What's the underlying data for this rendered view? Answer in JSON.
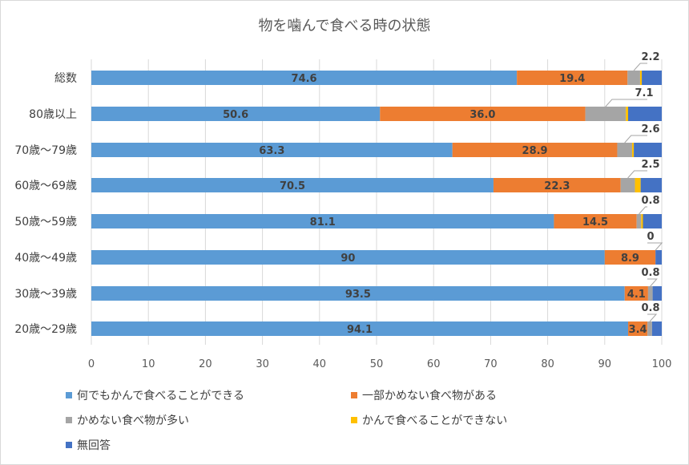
{
  "chart_data": {
    "type": "bar",
    "orientation": "horizontal",
    "stacked": true,
    "title": "物を噛んで食べる時の状態",
    "xlim": [
      0,
      100
    ],
    "xticks": [
      "0",
      "10",
      "20",
      "30",
      "40",
      "50",
      "60",
      "70",
      "80",
      "90",
      "100"
    ],
    "grid": "vertical",
    "legend_position": "bottom",
    "categories": [
      "総数",
      "80歳以上",
      "70歳～79歳",
      "60歳～69歳",
      "50歳～59歳",
      "40歳～49歳",
      "30歳～39歳",
      "20歳～29歳"
    ],
    "series": [
      {
        "name": "何でもかんで食べることができる",
        "color": "#5b9bd5",
        "values": [
          74.6,
          50.6,
          63.3,
          70.5,
          81.1,
          90,
          93.5,
          94.1
        ],
        "labels": [
          "74.6",
          "50.6",
          "63.3",
          "70.5",
          "81.1",
          "90",
          "93.5",
          "94.1"
        ]
      },
      {
        "name": "一部かめない食べ物がある",
        "color": "#ed7d31",
        "values": [
          19.4,
          36.0,
          28.9,
          22.3,
          14.5,
          8.9,
          4.1,
          3.4
        ],
        "labels": [
          "19.4",
          "36.0",
          "28.9",
          "22.3",
          "14.5",
          "8.9",
          "4.1",
          "3.4"
        ]
      },
      {
        "name": "かめない食べ物が多い",
        "color": "#a5a5a5",
        "values": [
          2.2,
          7.1,
          2.6,
          2.5,
          0.8,
          0,
          0.8,
          0.8
        ],
        "labels": [
          "2.2",
          "7.1",
          "2.6",
          "2.5",
          "0.8",
          "0",
          "0.8",
          "0.8"
        ]
      },
      {
        "name": "かんで食べることができない",
        "color": "#ffc000",
        "values": [
          0.3,
          0.4,
          0.3,
          1.0,
          0.3,
          0,
          0,
          0
        ],
        "labels": null
      },
      {
        "name": "無回答",
        "color": "#4472c4",
        "values": [
          3.5,
          5.9,
          4.9,
          3.7,
          3.3,
          1.1,
          1.6,
          1.7
        ],
        "labels": null
      }
    ]
  }
}
